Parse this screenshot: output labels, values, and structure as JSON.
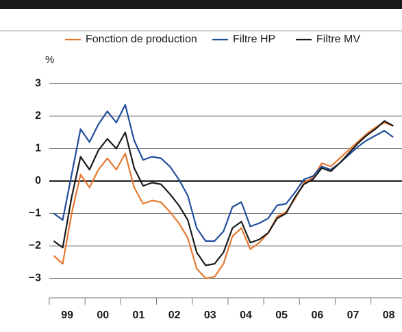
{
  "chart_data": {
    "type": "line",
    "y_unit": "%",
    "x": [
      1999.125,
      1999.375,
      1999.625,
      1999.875,
      2000.125,
      2000.375,
      2000.625,
      2000.875,
      2001.125,
      2001.375,
      2001.625,
      2001.875,
      2002.125,
      2002.375,
      2002.625,
      2002.875,
      2003.125,
      2003.375,
      2003.625,
      2003.875,
      2004.125,
      2004.375,
      2004.625,
      2004.875,
      2005.125,
      2005.375,
      2005.625,
      2005.875,
      2006.125,
      2006.375,
      2006.625,
      2006.875,
      2007.125,
      2007.375,
      2007.625,
      2007.875,
      2008.125,
      2008.375,
      2008.625
    ],
    "series": [
      {
        "name": "Fonction de production",
        "color": "#e8772e",
        "values": [
          -2.3,
          -2.55,
          -1.0,
          0.2,
          -0.2,
          0.35,
          0.7,
          0.35,
          0.85,
          -0.2,
          -0.7,
          -0.6,
          -0.65,
          -0.95,
          -1.3,
          -1.75,
          -2.7,
          -3.0,
          -2.95,
          -2.55,
          -1.7,
          -1.45,
          -2.1,
          -1.9,
          -1.6,
          -1.1,
          -0.95,
          -0.55,
          -0.05,
          0.1,
          0.55,
          0.45,
          0.7,
          0.95,
          1.2,
          1.45,
          1.65,
          1.8,
          1.7
        ]
      },
      {
        "name": "Filtre HP",
        "color": "#1f4e9c",
        "values": [
          -1.0,
          -1.2,
          0.2,
          1.6,
          1.2,
          1.75,
          2.15,
          1.8,
          2.35,
          1.25,
          0.65,
          0.75,
          0.7,
          0.45,
          0.05,
          -0.45,
          -1.45,
          -1.85,
          -1.85,
          -1.55,
          -0.8,
          -0.65,
          -1.4,
          -1.3,
          -1.15,
          -0.75,
          -0.7,
          -0.35,
          0.05,
          0.15,
          0.45,
          0.35,
          0.55,
          0.8,
          1.05,
          1.25,
          1.4,
          1.55,
          1.35
        ]
      },
      {
        "name": "Filtre MV",
        "color": "#1a1a1a",
        "values": [
          -1.85,
          -2.05,
          -0.5,
          0.75,
          0.35,
          0.95,
          1.3,
          1.0,
          1.5,
          0.4,
          -0.15,
          -0.05,
          -0.1,
          -0.4,
          -0.75,
          -1.2,
          -2.2,
          -2.6,
          -2.55,
          -2.2,
          -1.45,
          -1.25,
          -1.9,
          -1.8,
          -1.6,
          -1.15,
          -1.0,
          -0.5,
          -0.1,
          0.05,
          0.4,
          0.3,
          0.55,
          0.85,
          1.15,
          1.4,
          1.6,
          1.85,
          1.7
        ]
      }
    ],
    "xlim": [
      1999,
      2008.87
    ],
    "xticks": [
      {
        "value": 1999.5,
        "label": "99"
      },
      {
        "value": 2000.5,
        "label": "00"
      },
      {
        "value": 2001.5,
        "label": "01"
      },
      {
        "value": 2002.5,
        "label": "02"
      },
      {
        "value": 2003.5,
        "label": "03"
      },
      {
        "value": 2004.5,
        "label": "04"
      },
      {
        "value": 2005.5,
        "label": "05"
      },
      {
        "value": 2006.5,
        "label": "06"
      },
      {
        "value": 2007.5,
        "label": "07"
      },
      {
        "value": 2008.5,
        "label": "08"
      }
    ],
    "ylim": [
      -3.6,
      3.6
    ],
    "yticks": [
      3,
      2,
      1,
      0,
      {
        "value": -1,
        "label": "−1"
      },
      {
        "value": -2,
        "label": "−2"
      },
      {
        "value": -3,
        "label": "−3"
      }
    ],
    "grid": true
  }
}
